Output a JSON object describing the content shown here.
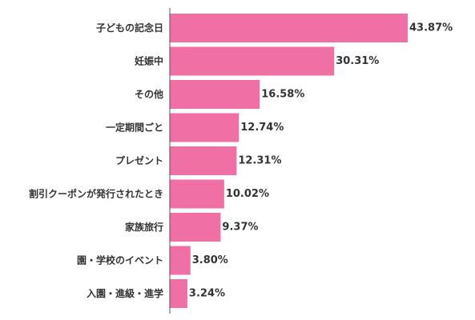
{
  "chart_data": {
    "type": "bar",
    "orientation": "horizontal",
    "categories": [
      "子どもの記念日",
      "妊娠中",
      "その他",
      "一定期間ごと",
      "プレゼント",
      "割引クーポンが発行されたとき",
      "家族旅行",
      "園・学校のイベント",
      "入園・進級・進学"
    ],
    "values": [
      43.87,
      30.31,
      16.58,
      12.74,
      12.31,
      10.02,
      9.37,
      3.8,
      3.24
    ],
    "value_labels": [
      "43.87%",
      "30.31%",
      "16.58%",
      "12.74%",
      "12.31%",
      "10.02%",
      "9.37%",
      "3.80%",
      "3.24%"
    ],
    "xlim": [
      0,
      43.87
    ],
    "grid": false,
    "legend": "none",
    "colors": {
      "bar": "#f06fa4",
      "axis": "#555555",
      "text": "#333333"
    }
  }
}
